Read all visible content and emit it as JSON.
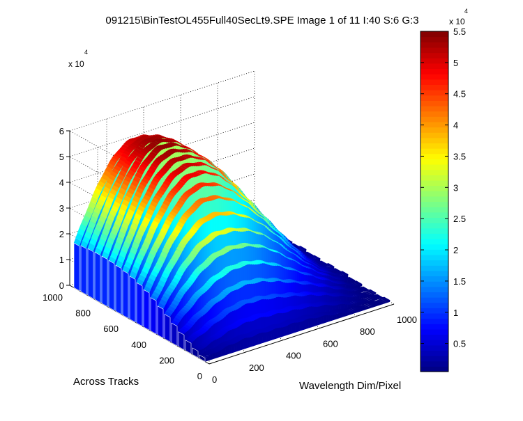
{
  "chart_data": {
    "type": "surface",
    "title": "091215\\BinTestOL455Full40SecLt9.SPE  Image 1 of 11  I:40  S:6  G:3",
    "xlabel": "Wavelength Dim/Pixel",
    "ylabel": "Across Tracks",
    "zlabel": "",
    "z_multiplier": "x 10",
    "z_multiplier_exp": "4",
    "xlim": [
      0,
      1000
    ],
    "ylim": [
      0,
      1000
    ],
    "zlim": [
      0,
      60000
    ],
    "x_ticks": [
      "0",
      "200",
      "400",
      "600",
      "800",
      "1000"
    ],
    "y_ticks": [
      "0",
      "200",
      "400",
      "600",
      "800",
      "1000"
    ],
    "z_ticks": [
      "0",
      "1",
      "2",
      "3",
      "4",
      "5",
      "6"
    ],
    "grid": true,
    "colormap": "jet",
    "colorbar": {
      "clim": [
        500,
        55000
      ],
      "multiplier": "x 10",
      "multiplier_exp": "4",
      "ticks": [
        "0.5",
        "1",
        "1.5",
        "2",
        "2.5",
        "3",
        "3.5",
        "4",
        "4.5",
        "5",
        "5.5"
      ]
    },
    "series_description_values": {
      "tracks_y": [
        950,
        900,
        850,
        800,
        750,
        700,
        650,
        600,
        550,
        500,
        450,
        400,
        350,
        300,
        250,
        200,
        150,
        100,
        50
      ],
      "peak_z": [
        51000,
        52500,
        53500,
        54000,
        54000,
        53500,
        52500,
        51000,
        49000,
        46000,
        42500,
        38000,
        33000,
        28000,
        22500,
        17000,
        12000,
        7500,
        4000
      ],
      "peak_x": 330,
      "edge_z_x0": 17000,
      "edge_z_x1000": 1500
    }
  }
}
